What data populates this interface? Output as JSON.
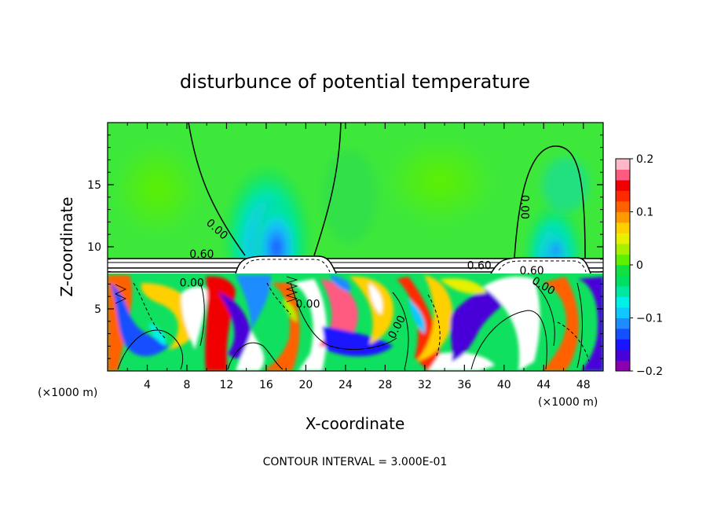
{
  "chart_data": {
    "type": "heatmap",
    "title": "disturbunce of potential temperature",
    "xlabel": "X-coordinate",
    "ylabel": "Z-coordinate",
    "x_unit": "(×1000 m)",
    "z_unit": "(×1000 m)",
    "xlim": [
      0,
      50
    ],
    "ylim": [
      0,
      20
    ],
    "x_ticks": [
      4,
      8,
      12,
      16,
      20,
      24,
      28,
      32,
      36,
      40,
      44,
      48
    ],
    "y_ticks": [
      5,
      10,
      15
    ],
    "colorbar": {
      "min": -0.2,
      "max": 0.2,
      "ticks": [
        0.2,
        0.1,
        0,
        -0.1,
        -0.2
      ],
      "tick_labels": [
        "0.2",
        "0.1",
        "0",
        "−0.1",
        "−0.2"
      ],
      "colors": [
        "#8a00b0",
        "#4a00d8",
        "#1a14ff",
        "#1450ff",
        "#1e8cff",
        "#10c8ff",
        "#00f0e8",
        "#00e8a0",
        "#00e060",
        "#10e040",
        "#5ef000",
        "#a8f000",
        "#e6f000",
        "#ffd000",
        "#ff9a00",
        "#ff6000",
        "#ff2a00",
        "#f00000",
        "#ff5a80",
        "#ffb8c8"
      ]
    },
    "contour_interval": "CONTOUR INTERVAL = 3.000E-01",
    "contour_labels": [
      {
        "text": "0.00",
        "x": 10.8,
        "z": 11.2,
        "rotate": 42
      },
      {
        "text": "0.00",
        "x": 8.5,
        "z": 6.8,
        "rotate": 0
      },
      {
        "text": "0.60",
        "x": 9.5,
        "z": 9.1,
        "rotate": 0
      },
      {
        "text": "0.00",
        "x": 20.2,
        "z": 5.1,
        "rotate": 0
      },
      {
        "text": "0.00",
        "x": 29.5,
        "z": 3.4,
        "rotate": -62
      },
      {
        "text": "0.60",
        "x": 37.5,
        "z": 8.2,
        "rotate": 0
      },
      {
        "text": "0.60",
        "x": 42.8,
        "z": 7.8,
        "rotate": 0
      },
      {
        "text": "0.00",
        "x": 43.8,
        "z": 6.6,
        "rotate": 30
      },
      {
        "text": "0.00",
        "x": 41.7,
        "z": 13.2,
        "rotate": 90
      }
    ]
  }
}
